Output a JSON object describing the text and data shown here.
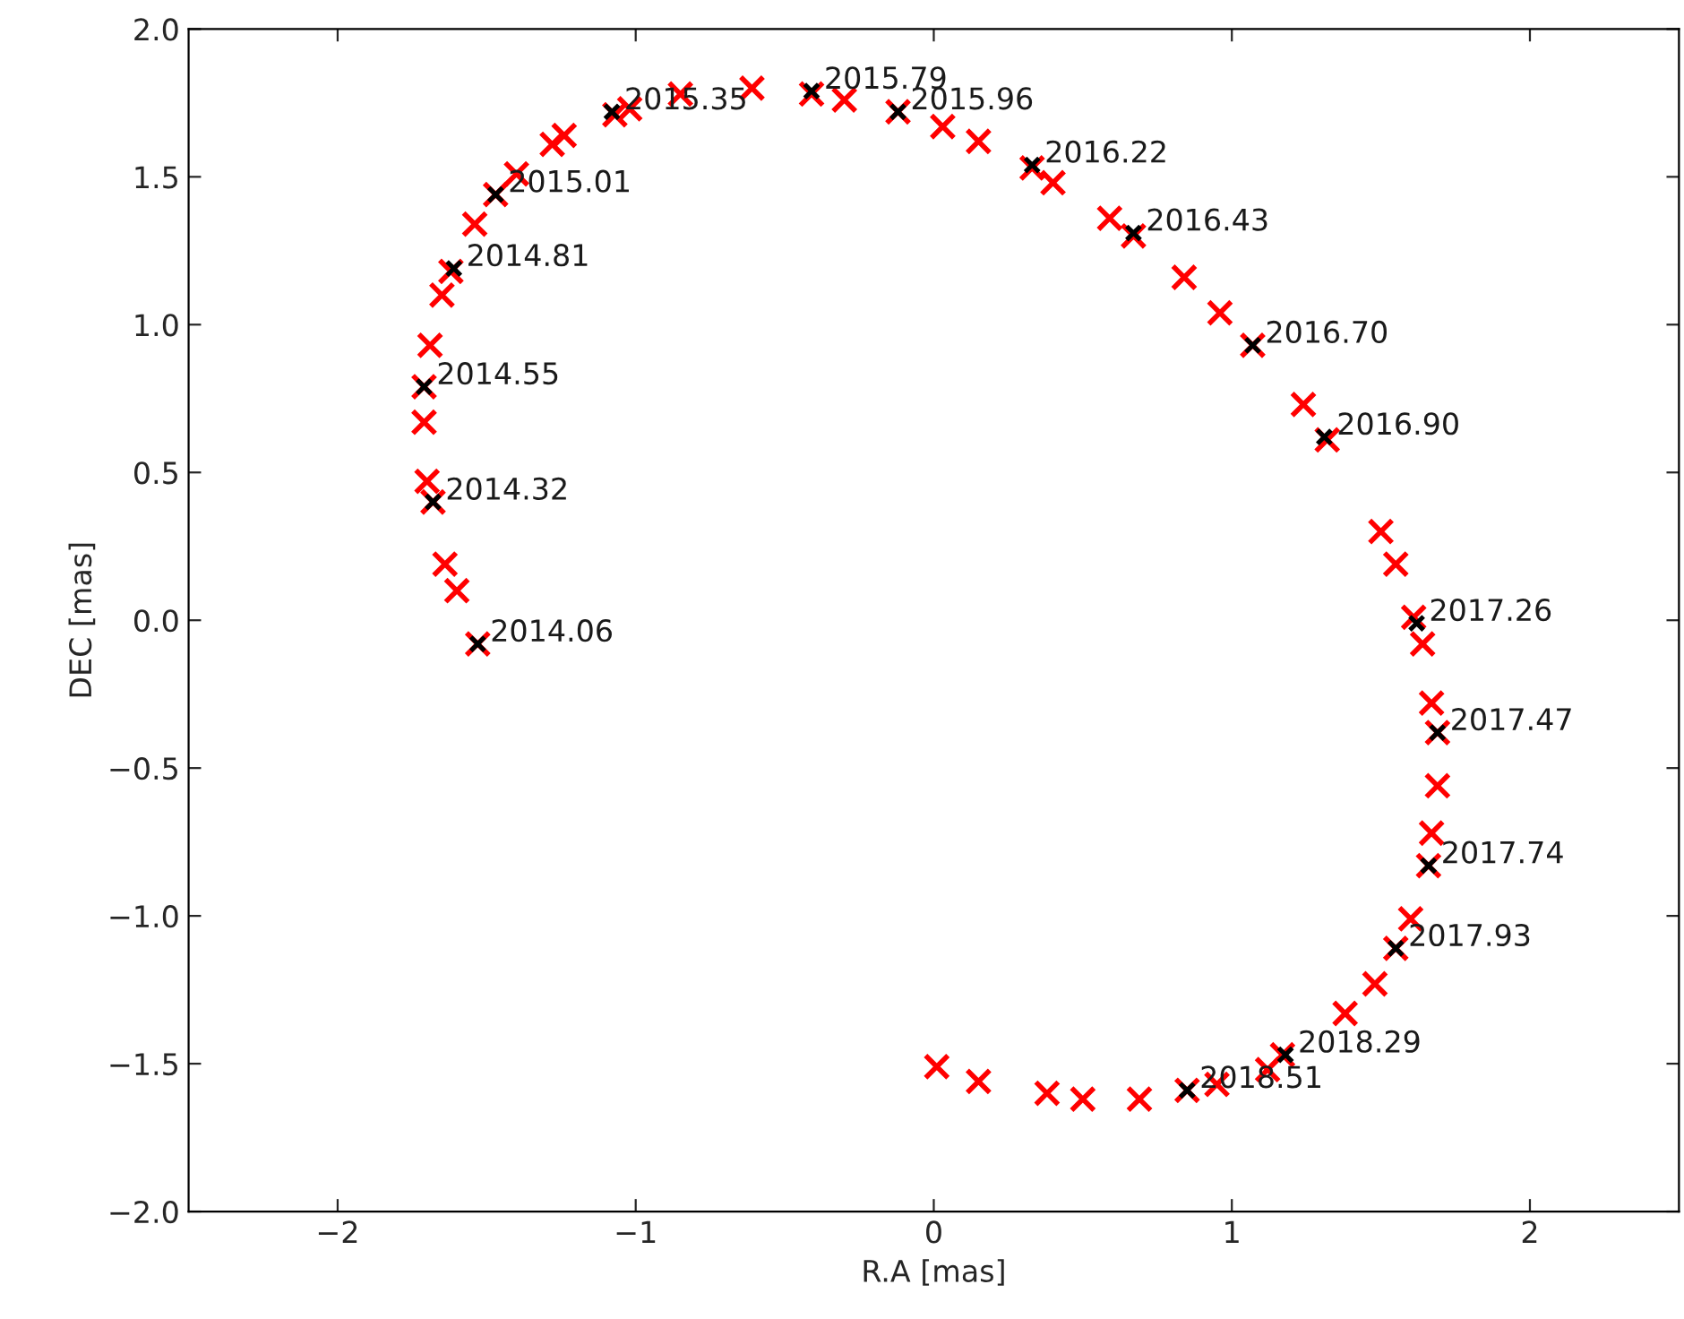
{
  "chart_data": {
    "type": "scatter",
    "xlabel": "R.A [mas]",
    "ylabel": "DEC [mas]",
    "xlim": [
      -2.5,
      2.5
    ],
    "ylim": [
      -2.0,
      2.0
    ],
    "xticks": [
      {
        "value": -2,
        "label": "−2"
      },
      {
        "value": -1,
        "label": "−1"
      },
      0,
      1,
      2
    ],
    "yticks": [
      {
        "value": -2.0,
        "label": "−2.0"
      },
      {
        "value": -1.5,
        "label": "−1.5"
      },
      {
        "value": -1.0,
        "label": "−1.0"
      },
      {
        "value": -0.5,
        "label": "−0.5"
      },
      {
        "value": 0.0,
        "label": "0.0"
      },
      0.5,
      {
        "value": 1.0,
        "label": "1.0"
      },
      1.5,
      {
        "value": 2.0,
        "label": "2.0"
      }
    ],
    "grid": false,
    "marker": "cross",
    "series": [
      {
        "color": "#ff0000",
        "x": [
          -1.53,
          -1.6,
          -1.64,
          -1.68,
          -1.7,
          -1.71,
          -1.71,
          -1.69,
          -1.65,
          -1.62,
          -1.54,
          -1.47,
          -1.4,
          -1.28,
          -1.24,
          -1.07,
          -1.02,
          -0.85,
          -0.61,
          -0.41,
          -0.3,
          -0.12,
          0.03,
          0.15,
          0.33,
          0.4,
          0.59,
          0.67,
          0.84,
          0.96,
          1.07,
          1.24,
          1.32,
          1.5,
          1.55,
          1.61,
          1.64,
          1.67,
          1.69,
          1.69,
          1.67,
          1.66,
          1.6,
          1.55,
          1.48,
          1.38,
          1.17,
          1.12,
          0.95,
          0.85,
          0.69,
          0.5,
          0.38,
          0.15,
          0.01
        ],
        "values": [
          -0.08,
          0.1,
          0.19,
          0.4,
          0.47,
          0.67,
          0.79,
          0.93,
          1.1,
          1.18,
          1.34,
          1.44,
          1.51,
          1.61,
          1.64,
          1.71,
          1.73,
          1.78,
          1.8,
          1.78,
          1.76,
          1.72,
          1.67,
          1.62,
          1.53,
          1.48,
          1.36,
          1.3,
          1.16,
          1.04,
          0.93,
          0.73,
          0.61,
          0.3,
          0.19,
          0.01,
          -0.08,
          -0.28,
          -0.38,
          -0.56,
          -0.72,
          -0.83,
          -1.01,
          -1.11,
          -1.23,
          -1.33,
          -1.47,
          -1.52,
          -1.57,
          -1.59,
          -1.62,
          -1.62,
          -1.6,
          -1.56,
          -1.51
        ]
      },
      {
        "color": "#000000",
        "x": [
          -1.53,
          -1.68,
          -1.71,
          -1.61,
          -1.47,
          -1.08,
          -0.41,
          -0.12,
          0.33,
          0.67,
          1.07,
          1.31,
          1.62,
          1.69,
          1.66,
          1.55,
          1.18,
          0.85
        ],
        "values": [
          -0.08,
          0.4,
          0.79,
          1.19,
          1.44,
          1.72,
          1.79,
          1.72,
          1.54,
          1.31,
          0.93,
          0.62,
          -0.01,
          -0.38,
          -0.83,
          -1.11,
          -1.47,
          -1.59
        ]
      }
    ],
    "annotations": [
      {
        "text": "2014.06",
        "x": -1.53,
        "y": -0.08
      },
      {
        "text": "2014.32",
        "x": -1.68,
        "y": 0.4
      },
      {
        "text": "2014.55",
        "x": -1.71,
        "y": 0.79
      },
      {
        "text": "2014.81",
        "x": -1.61,
        "y": 1.19
      },
      {
        "text": "2015.01",
        "x": -1.47,
        "y": 1.44
      },
      {
        "text": "2015.35",
        "x": -1.08,
        "y": 1.72
      },
      {
        "text": "2015.79",
        "x": -0.41,
        "y": 1.79
      },
      {
        "text": "2015.96",
        "x": -0.12,
        "y": 1.72
      },
      {
        "text": "2016.22",
        "x": 0.33,
        "y": 1.54
      },
      {
        "text": "2016.43",
        "x": 0.67,
        "y": 1.31
      },
      {
        "text": "2016.70",
        "x": 1.07,
        "y": 0.93
      },
      {
        "text": "2016.90",
        "x": 1.31,
        "y": 0.62
      },
      {
        "text": "2017.26",
        "x": 1.62,
        "y": -0.01
      },
      {
        "text": "2017.47",
        "x": 1.69,
        "y": -0.38
      },
      {
        "text": "2017.74",
        "x": 1.66,
        "y": -0.83
      },
      {
        "text": "2017.93",
        "x": 1.55,
        "y": -1.11
      },
      {
        "text": "2018.29",
        "x": 1.18,
        "y": -1.47
      },
      {
        "text": "2018.51",
        "x": 0.85,
        "y": -1.59
      }
    ]
  }
}
